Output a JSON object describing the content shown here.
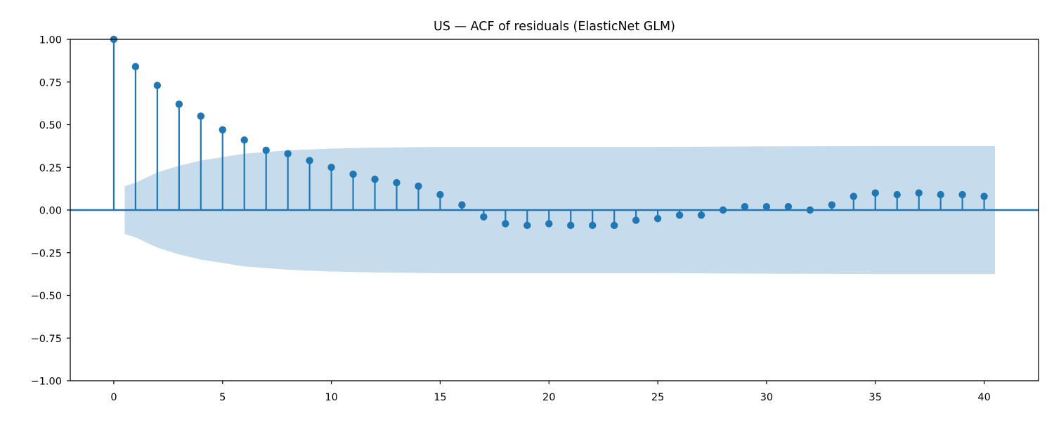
{
  "chart_data": {
    "type": "scatter",
    "subtype": "stem",
    "title": "US — ACF of residuals (ElasticNet GLM)",
    "xlabel": "",
    "ylabel": "",
    "xlim": [
      -2,
      42.5
    ],
    "ylim": [
      -1.0,
      1.0
    ],
    "x_ticks": [
      0,
      5,
      10,
      15,
      20,
      25,
      30,
      35,
      40
    ],
    "y_ticks": [
      1.0,
      0.75,
      0.5,
      0.25,
      0.0,
      -0.25,
      -0.5,
      -0.75,
      -1.0
    ],
    "y_tick_labels": [
      "1.00",
      "0.75",
      "0.50",
      "0.25",
      "0.00",
      "−0.25",
      "−0.50",
      "−0.75",
      "−1.00"
    ],
    "grid": false,
    "legend": "none",
    "lags": [
      0,
      1,
      2,
      3,
      4,
      5,
      6,
      7,
      8,
      9,
      10,
      11,
      12,
      13,
      14,
      15,
      16,
      17,
      18,
      19,
      20,
      21,
      22,
      23,
      24,
      25,
      26,
      27,
      28,
      29,
      30,
      31,
      32,
      33,
      34,
      35,
      36,
      37,
      38,
      39,
      40
    ],
    "acf": [
      1.0,
      0.84,
      0.73,
      0.62,
      0.55,
      0.47,
      0.41,
      0.35,
      0.33,
      0.29,
      0.25,
      0.21,
      0.18,
      0.16,
      0.14,
      0.09,
      0.03,
      -0.04,
      -0.08,
      -0.09,
      -0.08,
      -0.09,
      -0.09,
      -0.09,
      -0.06,
      -0.05,
      -0.03,
      -0.03,
      0.0,
      0.02,
      0.02,
      0.02,
      0.0,
      0.03,
      0.08,
      0.1,
      0.09,
      0.1,
      0.09,
      0.09,
      0.08
    ],
    "confidence_band": {
      "x": [
        0.5,
        1,
        2,
        3,
        4,
        5,
        6,
        7,
        8,
        9,
        10,
        12,
        15,
        20,
        25,
        30,
        35,
        40,
        40.5
      ],
      "upper": [
        0.14,
        0.16,
        0.22,
        0.26,
        0.29,
        0.31,
        0.33,
        0.34,
        0.35,
        0.355,
        0.36,
        0.365,
        0.37,
        0.37,
        0.37,
        0.373,
        0.375,
        0.375,
        0.375
      ]
    },
    "colors": {
      "stem": "#1f77b4",
      "band": "#c6dbec",
      "axes": "#000000",
      "baseline": "#1f77b4"
    }
  }
}
